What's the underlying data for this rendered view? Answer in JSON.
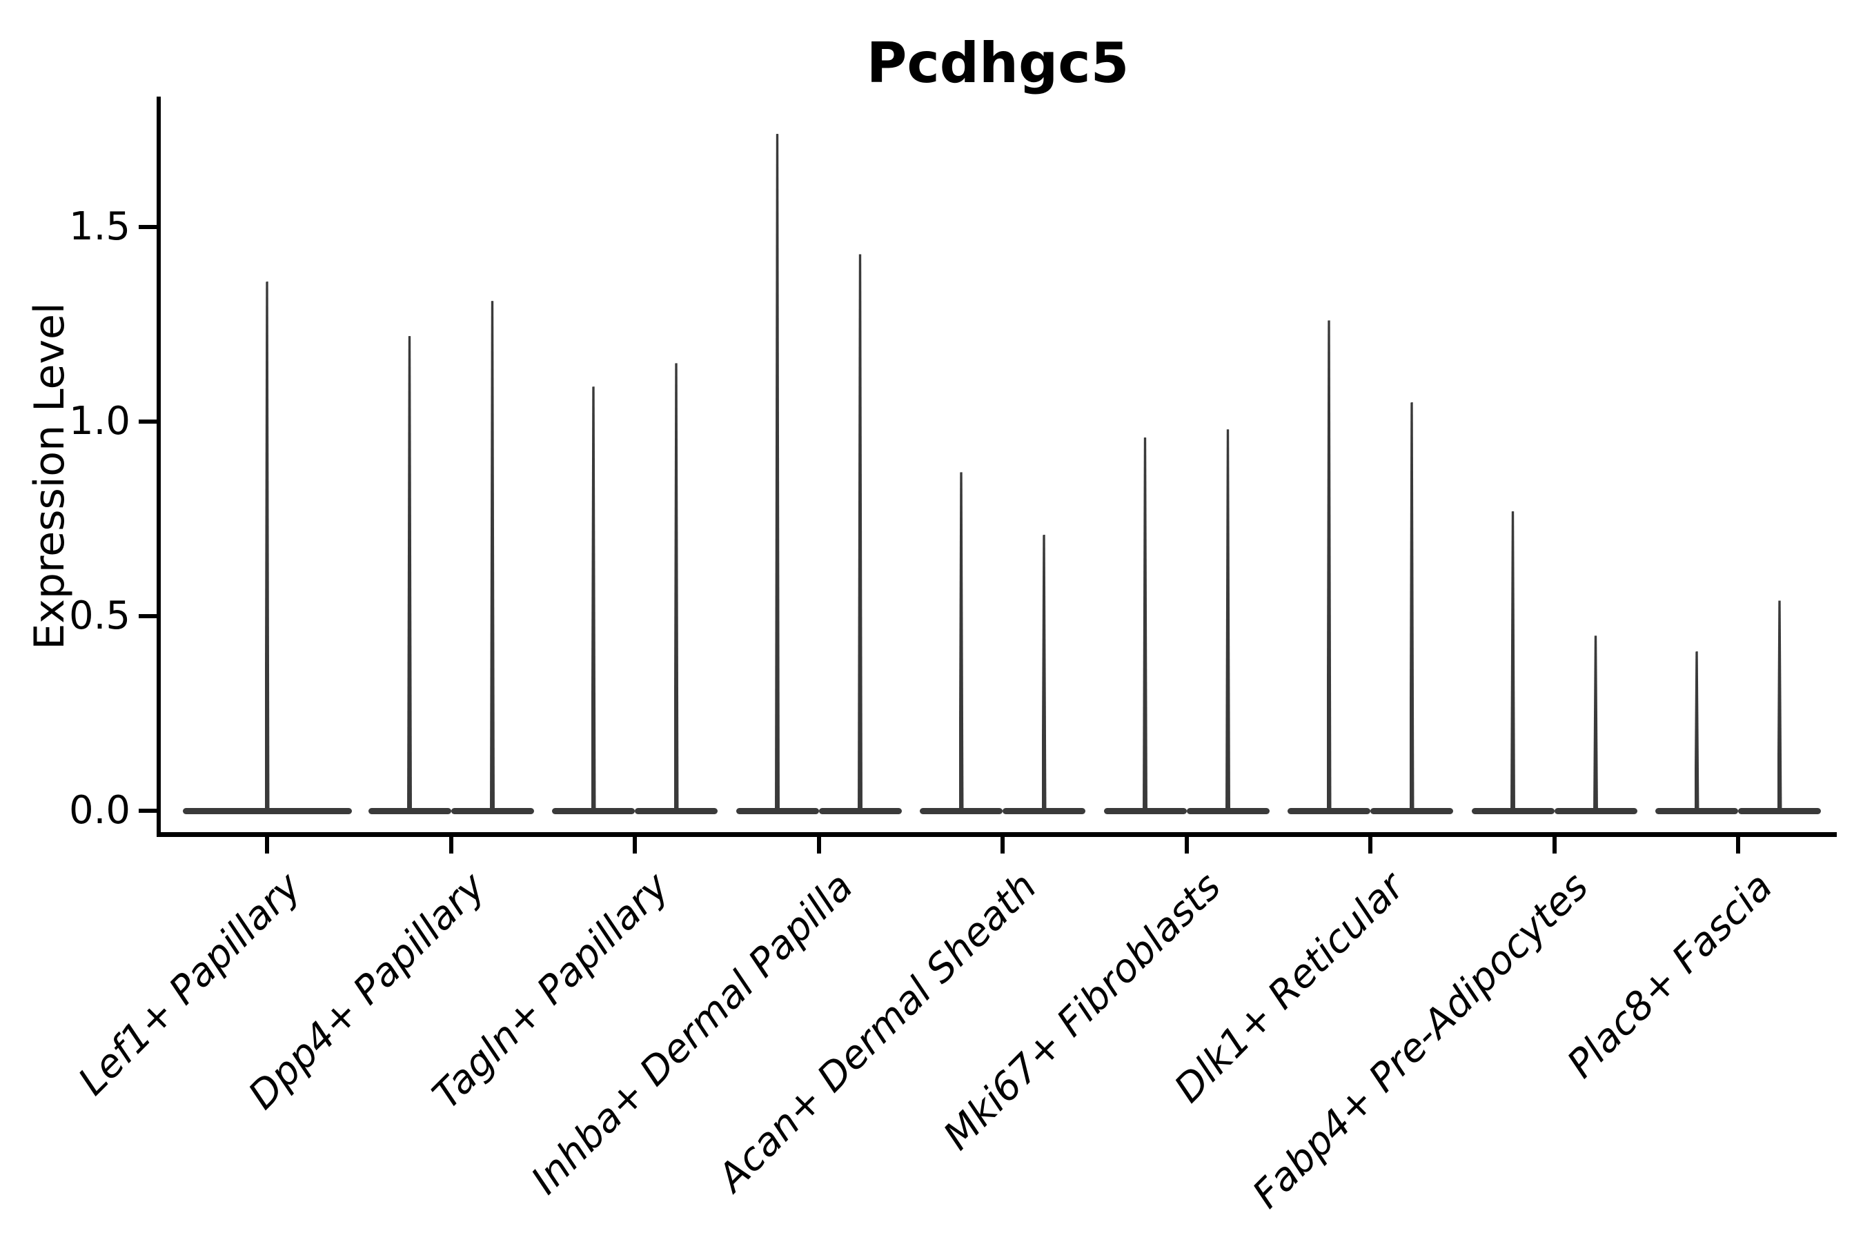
{
  "figure": {
    "title": "Pcdhgc5",
    "ylabel": "Expression Level"
  },
  "style": {
    "violin_color": "#3a3a3a",
    "axis_color": "#000000",
    "text_color": "#000000",
    "background": "#ffffff"
  },
  "chart_data": {
    "type": "violin",
    "title": "Pcdhgc5",
    "xlabel": "",
    "ylabel": "Expression Level",
    "orientation": "vertical",
    "grid": false,
    "legend": "none",
    "ylim": [
      -0.09,
      1.83
    ],
    "yticks": [
      0.0,
      0.5,
      1.0,
      1.5
    ],
    "ytick_labels": [
      "0.0",
      "0.5",
      "1.0",
      "1.5"
    ],
    "note": "Needle-thin violins: dense flat body at expression 0 with a thin density spike rising to the peak expression value. Category 1 has one full-width violin; all other categories have two adjacent half-width violins.",
    "categories": [
      {
        "label": "Lef1+ Papillary",
        "violins": [
          {
            "baseline": 0.0,
            "peak_expression": 1.36
          }
        ]
      },
      {
        "label": "Dpp4+ Papillary",
        "violins": [
          {
            "baseline": 0.0,
            "peak_expression": 1.22
          },
          {
            "baseline": 0.0,
            "peak_expression": 1.31
          }
        ]
      },
      {
        "label": "Tagln+ Papillary",
        "violins": [
          {
            "baseline": 0.0,
            "peak_expression": 1.09
          },
          {
            "baseline": 0.0,
            "peak_expression": 1.15
          }
        ]
      },
      {
        "label": "Inhba+ Dermal Papilla",
        "violins": [
          {
            "baseline": 0.0,
            "peak_expression": 1.74
          },
          {
            "baseline": 0.0,
            "peak_expression": 1.43
          }
        ]
      },
      {
        "label": "Acan+ Dermal Sheath",
        "violins": [
          {
            "baseline": 0.0,
            "peak_expression": 0.87
          },
          {
            "baseline": 0.0,
            "peak_expression": 0.71
          }
        ]
      },
      {
        "label": "Mki67+ Fibroblasts",
        "violins": [
          {
            "baseline": 0.0,
            "peak_expression": 0.96
          },
          {
            "baseline": 0.0,
            "peak_expression": 0.98
          }
        ]
      },
      {
        "label": "Dlk1+ Reticular",
        "violins": [
          {
            "baseline": 0.0,
            "peak_expression": 1.26
          },
          {
            "baseline": 0.0,
            "peak_expression": 1.05
          }
        ]
      },
      {
        "label": "Fabp4+ Pre-Adipocytes",
        "violins": [
          {
            "baseline": 0.0,
            "peak_expression": 0.77
          },
          {
            "baseline": 0.0,
            "peak_expression": 0.45
          }
        ]
      },
      {
        "label": "Plac8+ Fascia",
        "violins": [
          {
            "baseline": 0.0,
            "peak_expression": 0.41
          },
          {
            "baseline": 0.0,
            "peak_expression": 0.54
          }
        ]
      }
    ]
  }
}
